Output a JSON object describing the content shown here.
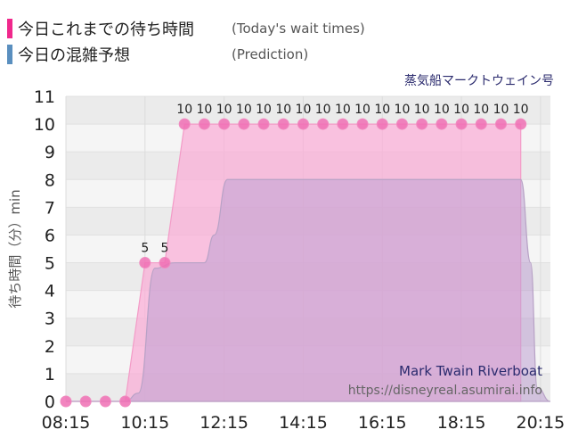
{
  "legend": {
    "today": {
      "label": "今日これまでの待ち時間",
      "sub": "(Today's wait times)",
      "color": "#f0288c"
    },
    "prediction": {
      "label": "今日の混雑予想",
      "sub": "(Prediction)",
      "color": "#5a8fbf"
    }
  },
  "attraction_jp": "蒸気船マークトウェイン号",
  "attraction_en": "Mark Twain Riverboat",
  "source": "https://disneyreal.asumirai.info",
  "chart_data": {
    "type": "area",
    "ylabel": "待ち時間（分）min",
    "ylim": [
      0,
      11
    ],
    "yticks": [
      0,
      1,
      2,
      3,
      4,
      5,
      6,
      7,
      8,
      9,
      10,
      11
    ],
    "xlim": [
      "08:15",
      "20:30"
    ],
    "xticks": [
      "08:15",
      "10:15",
      "12:15",
      "14:15",
      "16:15",
      "18:15",
      "20:15"
    ],
    "series": [
      {
        "name": "今日これまでの待ち時間",
        "points": [
          [
            "08:15",
            0
          ],
          [
            "08:45",
            0
          ],
          [
            "09:15",
            0
          ],
          [
            "09:45",
            0
          ],
          [
            "10:15",
            5
          ],
          [
            "10:45",
            5
          ],
          [
            "11:15",
            10
          ],
          [
            "11:45",
            10
          ],
          [
            "12:15",
            10
          ],
          [
            "12:45",
            10
          ],
          [
            "13:15",
            10
          ],
          [
            "13:45",
            10
          ],
          [
            "14:15",
            10
          ],
          [
            "14:45",
            10
          ],
          [
            "15:15",
            10
          ],
          [
            "15:45",
            10
          ],
          [
            "16:15",
            10
          ],
          [
            "16:45",
            10
          ],
          [
            "17:15",
            10
          ],
          [
            "17:45",
            10
          ],
          [
            "18:15",
            10
          ],
          [
            "18:45",
            10
          ],
          [
            "19:15",
            10
          ],
          [
            "19:45",
            10
          ]
        ],
        "data_labels": [
          "",
          "",
          "",
          "",
          "5",
          "5",
          "10",
          "10",
          "10",
          "10",
          "10",
          "10",
          "10",
          "10",
          "10",
          "10",
          "10",
          "10",
          "10",
          "10",
          "10",
          "10",
          "10",
          "10"
        ]
      },
      {
        "name": "今日の混雑予想",
        "points": [
          [
            "08:15",
            0
          ],
          [
            "09:45",
            0
          ],
          [
            "10:05",
            0.3
          ],
          [
            "10:30",
            4.8
          ],
          [
            "11:00",
            5
          ],
          [
            "11:45",
            5
          ],
          [
            "12:00",
            6
          ],
          [
            "12:20",
            8
          ],
          [
            "14:15",
            8
          ],
          [
            "16:15",
            8
          ],
          [
            "18:15",
            8
          ],
          [
            "19:45",
            8
          ],
          [
            "20:00",
            5
          ],
          [
            "20:10",
            0.5
          ],
          [
            "20:30",
            0
          ]
        ]
      }
    ]
  }
}
